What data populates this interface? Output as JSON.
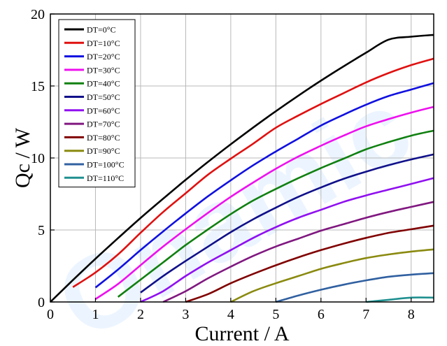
{
  "chart_data": {
    "type": "line",
    "xlabel": "Current / A",
    "ylabel": "Qc / W",
    "xlim": [
      0,
      8.5
    ],
    "ylim": [
      0,
      20
    ],
    "xticks": [
      "0",
      "1",
      "2",
      "3",
      "4",
      "5",
      "6",
      "7",
      "8"
    ],
    "yticks": [
      "0",
      "5",
      "10",
      "15",
      "20"
    ],
    "grid": true,
    "legend_position": "top-left",
    "watermark": "Onamic",
    "x": [
      0,
      0.5,
      1,
      1.5,
      2,
      2.5,
      3,
      3.5,
      4,
      4.5,
      5,
      5.5,
      6,
      6.5,
      7,
      7.5,
      8,
      8.5
    ],
    "series": [
      {
        "name": "DT=0°C",
        "color": "#000000",
        "values": [
          0,
          1.52,
          3.0,
          4.43,
          5.83,
          7.17,
          8.48,
          9.74,
          10.95,
          12.12,
          13.25,
          14.33,
          15.37,
          16.36,
          17.31,
          18.22,
          18.42,
          18.55
        ]
      },
      {
        "name": "DT=10°C",
        "color": "#e01010",
        "values": [
          null,
          1.03,
          2.05,
          3.3,
          4.8,
          6.25,
          7.55,
          8.85,
          9.95,
          11.0,
          12.1,
          12.95,
          13.75,
          14.5,
          15.25,
          15.9,
          16.45,
          16.9
        ]
      },
      {
        "name": "DT=20°C",
        "color": "#1010e0",
        "values": [
          null,
          null,
          1.0,
          2.25,
          3.6,
          4.9,
          6.15,
          7.35,
          8.45,
          9.5,
          10.45,
          11.35,
          12.25,
          13.0,
          13.7,
          14.3,
          14.75,
          15.2
        ]
      },
      {
        "name": "DT=30°C",
        "color": "#ee10ee",
        "values": [
          null,
          null,
          0.2,
          1.25,
          2.55,
          3.85,
          5.05,
          6.2,
          7.3,
          8.3,
          9.25,
          10.1,
          10.85,
          11.55,
          12.2,
          12.7,
          13.15,
          13.55
        ]
      },
      {
        "name": "DT=40°C",
        "color": "#108010",
        "values": [
          null,
          null,
          null,
          0.35,
          1.55,
          2.75,
          3.95,
          5.05,
          6.1,
          7.05,
          7.85,
          8.6,
          9.3,
          9.95,
          10.6,
          11.1,
          11.55,
          11.9
        ]
      },
      {
        "name": "DT=50°C",
        "color": "#10108a",
        "values": [
          null,
          null,
          null,
          null,
          0.65,
          1.8,
          2.85,
          3.85,
          4.85,
          5.75,
          6.55,
          7.3,
          7.95,
          8.55,
          9.05,
          9.5,
          9.9,
          10.25
        ]
      },
      {
        "name": "DT=60°C",
        "color": "#9010f0",
        "values": [
          null,
          null,
          null,
          null,
          0.0,
          0.75,
          1.8,
          2.75,
          3.6,
          4.45,
          5.2,
          5.85,
          6.4,
          6.95,
          7.4,
          7.8,
          8.2,
          8.6
        ]
      },
      {
        "name": "DT=70°C",
        "color": "#801880",
        "values": [
          null,
          null,
          null,
          null,
          null,
          0.0,
          0.75,
          1.65,
          2.45,
          3.2,
          3.85,
          4.4,
          4.95,
          5.4,
          5.85,
          6.25,
          6.6,
          6.95
        ]
      },
      {
        "name": "DT=80°C",
        "color": "#800000",
        "values": [
          null,
          null,
          null,
          null,
          null,
          null,
          0.0,
          0.55,
          1.3,
          1.95,
          2.55,
          3.1,
          3.6,
          4.05,
          4.45,
          4.8,
          5.05,
          5.3
        ]
      },
      {
        "name": "DT=90°C",
        "color": "#8a8a10",
        "values": [
          null,
          null,
          null,
          null,
          null,
          null,
          null,
          null,
          0.0,
          0.75,
          1.3,
          1.8,
          2.3,
          2.7,
          3.05,
          3.3,
          3.5,
          3.65
        ]
      },
      {
        "name": "DT=100°C",
        "color": "#3060a0",
        "values": [
          null,
          null,
          null,
          null,
          null,
          null,
          null,
          null,
          null,
          null,
          0.0,
          0.45,
          0.85,
          1.2,
          1.5,
          1.75,
          1.9,
          2.0
        ]
      },
      {
        "name": "DT=110°C",
        "color": "#209090",
        "values": [
          null,
          null,
          null,
          null,
          null,
          null,
          null,
          null,
          null,
          null,
          null,
          null,
          null,
          null,
          0.0,
          0.15,
          0.3,
          0.3
        ]
      }
    ]
  }
}
